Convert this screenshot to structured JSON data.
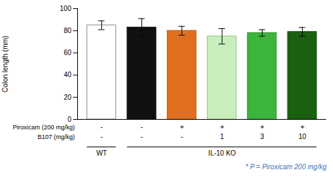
{
  "chart_data": {
    "type": "bar",
    "categories": [
      null,
      null,
      null,
      null,
      null,
      null
    ],
    "values": [
      85,
      83,
      80,
      75,
      78,
      79
    ],
    "errors": [
      4,
      8,
      4,
      7,
      3,
      4
    ],
    "colors": [
      "#ffffff",
      "#111111",
      "#e07020",
      "#c8eebc",
      "#3db53d",
      "#1a6010"
    ],
    "edge_colors": [
      "#888888",
      "#111111",
      "#c06010",
      "#90c880",
      "#2a902a",
      "#145010"
    ],
    "ylabel": "Colon length (mm)",
    "ylim": [
      0,
      100
    ],
    "yticks": [
      0,
      20,
      40,
      60,
      80,
      100
    ],
    "tick_labels": "y",
    "rows": [
      {
        "label": "Piroxicam (200 mg/kg)",
        "values": [
          "-",
          "-",
          "+",
          "+",
          "+",
          "+"
        ]
      },
      {
        "label": "B107 (mg/kg)",
        "values": [
          "-",
          "-",
          "-",
          "1",
          "3",
          "10"
        ]
      }
    ],
    "groups": [
      {
        "label": "WT",
        "size": 1
      },
      {
        "label": "IL-10 KO",
        "size": 5
      }
    ],
    "footnote": {
      "text": "* P = Piroxicam 200 mg/kg",
      "color": "#4472c4"
    }
  }
}
